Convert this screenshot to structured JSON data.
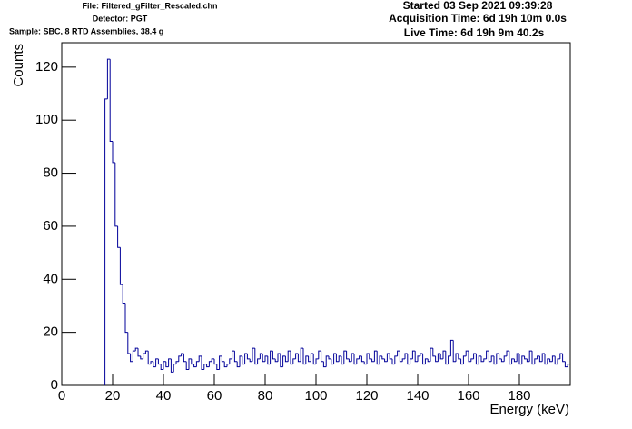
{
  "header": {
    "file": "File: Filtered_gFilter_Rescaled.chn",
    "detector": "Detector: PGT",
    "sample": "Sample: SBC, 8 RTD Assemblies, 38.4 g",
    "started": "Started 03 Sep 2021 09:39:28",
    "acquisition": "Acquisition Time: 6d 19h 10m 0.0s",
    "live": "Live Time: 6d 19h 9m 40.2s"
  },
  "chart_data": {
    "type": "histogram",
    "xlabel": "Energy (keV)",
    "ylabel": "Counts",
    "color": "#000099",
    "xlim": [
      0,
      200
    ],
    "ylim": [
      0,
      129.2
    ],
    "xticks": [
      0,
      20,
      40,
      60,
      80,
      100,
      120,
      140,
      160,
      180
    ],
    "yticks": [
      0,
      20,
      40,
      60,
      80,
      100,
      120
    ],
    "bins": [
      17,
      18,
      19,
      20,
      21,
      22,
      23,
      24,
      25,
      26,
      27,
      28,
      29,
      30,
      31,
      32,
      33,
      34,
      35,
      36,
      37,
      38,
      39,
      40,
      41,
      42,
      43,
      44,
      45,
      46,
      47,
      48,
      49,
      50,
      51,
      52,
      53,
      54,
      55,
      56,
      57,
      58,
      59,
      60,
      61,
      62,
      63,
      64,
      65,
      66,
      67,
      68,
      69,
      70,
      71,
      72,
      73,
      74,
      75,
      76,
      77,
      78,
      79,
      80,
      81,
      82,
      83,
      84,
      85,
      86,
      87,
      88,
      89,
      90,
      91,
      92,
      93,
      94,
      95,
      96,
      97,
      98,
      99,
      100,
      101,
      102,
      103,
      104,
      105,
      106,
      107,
      108,
      109,
      110,
      111,
      112,
      113,
      114,
      115,
      116,
      117,
      118,
      119,
      120,
      121,
      122,
      123,
      124,
      125,
      126,
      127,
      128,
      129,
      130,
      131,
      132,
      133,
      134,
      135,
      136,
      137,
      138,
      139,
      140,
      141,
      142,
      143,
      144,
      145,
      146,
      147,
      148,
      149,
      150,
      151,
      152,
      153,
      154,
      155,
      156,
      157,
      158,
      159,
      160,
      161,
      162,
      163,
      164,
      165,
      166,
      167,
      168,
      169,
      170,
      171,
      172,
      173,
      174,
      175,
      176,
      177,
      178,
      179,
      180,
      181,
      182,
      183,
      184,
      185,
      186,
      187,
      188,
      189,
      190,
      191,
      192,
      193,
      194,
      195,
      196,
      197,
      198,
      199,
      200
    ],
    "values": [
      108,
      123,
      92,
      84,
      60,
      52,
      38,
      31,
      20,
      12,
      9,
      13,
      14,
      11,
      10,
      12,
      13,
      8,
      9,
      7,
      10,
      8,
      6,
      9,
      7,
      10,
      5,
      8,
      9,
      11,
      12,
      9,
      6,
      10,
      8,
      7,
      9,
      11,
      6,
      8,
      7,
      9,
      10,
      8,
      6,
      11,
      9,
      7,
      8,
      10,
      13,
      9,
      7,
      11,
      8,
      12,
      10,
      9,
      14,
      8,
      10,
      12,
      9,
      11,
      8,
      13,
      10,
      9,
      12,
      7,
      11,
      9,
      13,
      8,
      10,
      12,
      9,
      14,
      8,
      11,
      9,
      12,
      8,
      10,
      13,
      9,
      7,
      11,
      10,
      8,
      12,
      9,
      11,
      8,
      13,
      10,
      9,
      12,
      8,
      10,
      11,
      9,
      8,
      12,
      10,
      9,
      13,
      8,
      11,
      10,
      9,
      12,
      10,
      8,
      11,
      13,
      9,
      10,
      12,
      8,
      10,
      13,
      9,
      11,
      12,
      8,
      10,
      9,
      14,
      11,
      9,
      12,
      10,
      13,
      8,
      11,
      17,
      9,
      12,
      10,
      8,
      11,
      13,
      9,
      10,
      12,
      8,
      11,
      9,
      10,
      13,
      9,
      11,
      8,
      12,
      10,
      9,
      11,
      13,
      8,
      10,
      9,
      12,
      8,
      11,
      10,
      9,
      13,
      8,
      10,
      11,
      9,
      12,
      8,
      10,
      9,
      11,
      8,
      10,
      12,
      9,
      7,
      8
    ]
  }
}
